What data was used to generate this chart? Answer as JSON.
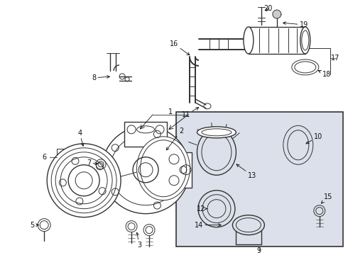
{
  "bg_color": "#ffffff",
  "line_color": "#333333",
  "box_bg": "#dce0ea",
  "fig_width": 4.9,
  "fig_height": 3.6,
  "dpi": 100
}
